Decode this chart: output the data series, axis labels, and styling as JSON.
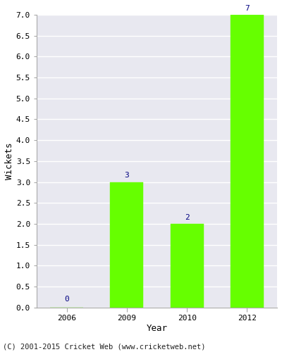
{
  "years": [
    2006,
    2009,
    2010,
    2012
  ],
  "wickets": [
    0,
    3,
    2,
    7
  ],
  "bar_color": "#66ff00",
  "bar_edge_color": "#66ff00",
  "xlabel": "Year",
  "ylabel": "Wickets",
  "ylim": [
    0,
    7.0
  ],
  "yticks": [
    0.0,
    0.5,
    1.0,
    1.5,
    2.0,
    2.5,
    3.0,
    3.5,
    4.0,
    4.5,
    5.0,
    5.5,
    6.0,
    6.5,
    7.0
  ],
  "label_color": "#000080",
  "label_fontsize": 8,
  "axis_label_fontsize": 9,
  "tick_fontsize": 8,
  "footer": "(C) 2001-2015 Cricket Web (www.cricketweb.net)",
  "footer_fontsize": 7.5,
  "plot_bg_color": "#e8e8f0",
  "fig_bg_color": "#ffffff",
  "grid_color": "#ffffff",
  "spine_color": "#aaaaaa",
  "bar_width": 0.55
}
